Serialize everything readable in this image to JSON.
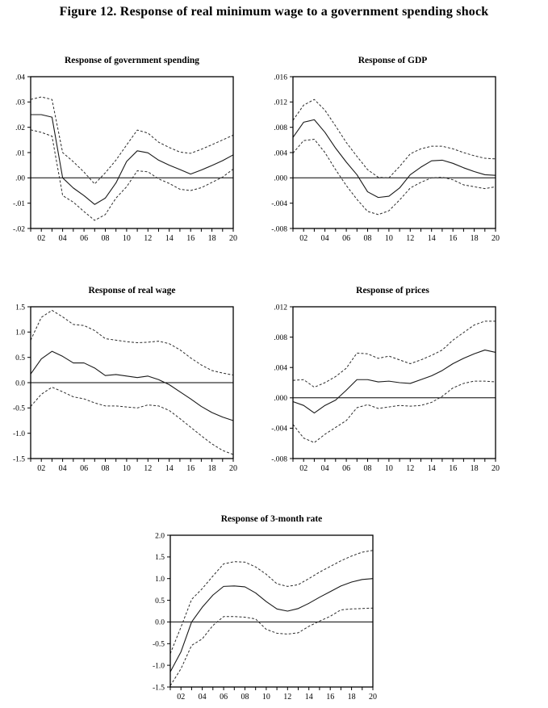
{
  "figure": {
    "title": "Figure 12. Response of real minimum wage to a government spending shock"
  },
  "style": {
    "background": "#ffffff",
    "line_color": "#000000",
    "band_style": "dashed",
    "mean_style": "solid"
  },
  "chart_data": [
    {
      "id": "government-spending",
      "type": "line",
      "title": "Response of government spending",
      "xlabel": "",
      "ylabel": "",
      "grid": false,
      "legend": "none",
      "zero_line": true,
      "x": [
        1,
        2,
        3,
        4,
        5,
        6,
        7,
        8,
        9,
        10,
        11,
        12,
        13,
        14,
        15,
        16,
        17,
        18,
        19,
        20
      ],
      "xtick_positions": [
        2,
        4,
        6,
        8,
        10,
        12,
        14,
        16,
        18,
        20
      ],
      "xtick_labels": [
        "02",
        "04",
        "06",
        "08",
        "10",
        "12",
        "14",
        "16",
        "18",
        "20"
      ],
      "ylim": [
        -0.02,
        0.04
      ],
      "ytick_values": [
        0.04,
        0.03,
        0.02,
        0.01,
        0.0,
        -0.01,
        -0.02
      ],
      "ytick_labels": [
        ".04",
        ".03",
        ".02",
        ".01",
        ".00",
        "-.01",
        "-.02"
      ],
      "series": [
        {
          "name": "mean",
          "style": "solid",
          "values": [
            0.025,
            0.025,
            0.024,
            0.0,
            -0.004,
            -0.007,
            -0.0105,
            -0.008,
            -0.002,
            0.0065,
            0.0107,
            0.0099,
            0.007,
            0.005,
            0.0033,
            0.0015,
            0.0031,
            0.0049,
            0.0068,
            0.0091
          ]
        },
        {
          "name": "upper-band",
          "style": "dashed",
          "values": [
            0.031,
            0.032,
            0.031,
            0.01,
            0.0064,
            0.0023,
            -0.0024,
            0.002,
            0.007,
            0.013,
            0.0189,
            0.0177,
            0.0141,
            0.012,
            0.0102,
            0.0097,
            0.0113,
            0.0131,
            0.015,
            0.0169
          ]
        },
        {
          "name": "lower-band",
          "style": "dashed",
          "values": [
            0.019,
            0.018,
            0.0165,
            -0.007,
            -0.0096,
            -0.0133,
            -0.0168,
            -0.0145,
            -0.008,
            -0.0035,
            0.0028,
            0.0024,
            -0.0004,
            -0.0022,
            -0.0045,
            -0.005,
            -0.0039,
            -0.0018,
            0.0003,
            0.0035
          ]
        }
      ]
    },
    {
      "id": "gdp",
      "type": "line",
      "title": "Response of GDP",
      "xlabel": "",
      "ylabel": "",
      "grid": false,
      "legend": "none",
      "zero_line": true,
      "x": [
        1,
        2,
        3,
        4,
        5,
        6,
        7,
        8,
        9,
        10,
        11,
        12,
        13,
        14,
        15,
        16,
        17,
        18,
        19,
        20
      ],
      "xtick_positions": [
        2,
        4,
        6,
        8,
        10,
        12,
        14,
        16,
        18,
        20
      ],
      "xtick_labels": [
        "02",
        "04",
        "06",
        "08",
        "10",
        "12",
        "14",
        "16",
        "18",
        "20"
      ],
      "ylim": [
        -0.008,
        0.016
      ],
      "ytick_values": [
        0.016,
        0.012,
        0.008,
        0.004,
        0.0,
        -0.004,
        -0.008
      ],
      "ytick_labels": [
        ".016",
        ".012",
        ".008",
        ".004",
        ".000",
        "-.004",
        "-.008"
      ],
      "series": [
        {
          "name": "mean",
          "style": "solid",
          "values": [
            0.0064,
            0.0088,
            0.0092,
            0.0072,
            0.0047,
            0.0025,
            0.0005,
            -0.0022,
            -0.0031,
            -0.0029,
            -0.0016,
            0.0005,
            0.0017,
            0.0027,
            0.0028,
            0.0023,
            0.0016,
            0.001,
            0.0005,
            0.0004
          ]
        },
        {
          "name": "upper-band",
          "style": "dashed",
          "values": [
            0.0091,
            0.0115,
            0.0124,
            0.0107,
            0.0082,
            0.0056,
            0.0034,
            0.0013,
            0.0001,
            0.0,
            0.0018,
            0.0038,
            0.0046,
            0.005,
            0.005,
            0.0046,
            0.004,
            0.0035,
            0.0031,
            0.003
          ]
        },
        {
          "name": "lower-band",
          "style": "dashed",
          "values": [
            0.0039,
            0.0059,
            0.0061,
            0.004,
            0.0013,
            -0.0012,
            -0.0034,
            -0.0053,
            -0.0058,
            -0.0052,
            -0.0035,
            -0.0016,
            -0.0007,
            0.0,
            0.0001,
            -0.0003,
            -0.0011,
            -0.0014,
            -0.0017,
            -0.0014
          ]
        }
      ]
    },
    {
      "id": "real-wage",
      "type": "line",
      "title": "Response of real wage",
      "xlabel": "",
      "ylabel": "",
      "grid": false,
      "legend": "none",
      "zero_line": true,
      "x": [
        1,
        2,
        3,
        4,
        5,
        6,
        7,
        8,
        9,
        10,
        11,
        12,
        13,
        14,
        15,
        16,
        17,
        18,
        19,
        20
      ],
      "xtick_positions": [
        2,
        4,
        6,
        8,
        10,
        12,
        14,
        16,
        18,
        20
      ],
      "xtick_labels": [
        "02",
        "04",
        "06",
        "08",
        "10",
        "12",
        "14",
        "16",
        "18",
        "20"
      ],
      "ylim": [
        -1.5,
        1.5
      ],
      "ytick_values": [
        1.5,
        1.0,
        0.5,
        0.0,
        -0.5,
        -1.0,
        -1.5
      ],
      "ytick_labels": [
        "1.5",
        "1.0",
        "0.5",
        "0.0",
        "-0.5",
        "-1.0",
        "-1.5"
      ],
      "series": [
        {
          "name": "mean",
          "style": "solid",
          "values": [
            0.17,
            0.47,
            0.62,
            0.52,
            0.39,
            0.39,
            0.29,
            0.14,
            0.16,
            0.13,
            0.1,
            0.13,
            0.06,
            -0.04,
            -0.18,
            -0.32,
            -0.47,
            -0.59,
            -0.68,
            -0.75
          ]
        },
        {
          "name": "upper-band",
          "style": "dashed",
          "values": [
            0.84,
            1.29,
            1.43,
            1.3,
            1.15,
            1.13,
            1.03,
            0.87,
            0.84,
            0.81,
            0.79,
            0.8,
            0.82,
            0.77,
            0.65,
            0.49,
            0.35,
            0.24,
            0.19,
            0.15
          ]
        },
        {
          "name": "lower-band",
          "style": "dashed",
          "values": [
            -0.47,
            -0.23,
            -0.09,
            -0.18,
            -0.28,
            -0.32,
            -0.4,
            -0.46,
            -0.46,
            -0.48,
            -0.5,
            -0.44,
            -0.46,
            -0.55,
            -0.71,
            -0.88,
            -1.05,
            -1.21,
            -1.34,
            -1.42
          ]
        }
      ]
    },
    {
      "id": "prices",
      "type": "line",
      "title": "Response of prices",
      "xlabel": "",
      "ylabel": "",
      "grid": false,
      "legend": "none",
      "zero_line": true,
      "x": [
        1,
        2,
        3,
        4,
        5,
        6,
        7,
        8,
        9,
        10,
        11,
        12,
        13,
        14,
        15,
        16,
        17,
        18,
        19,
        20
      ],
      "xtick_positions": [
        2,
        4,
        6,
        8,
        10,
        12,
        14,
        16,
        18,
        20
      ],
      "xtick_labels": [
        "02",
        "04",
        "06",
        "08",
        "10",
        "12",
        "14",
        "16",
        "18",
        "20"
      ],
      "ylim": [
        -0.008,
        0.012
      ],
      "ytick_values": [
        0.012,
        0.008,
        0.004,
        0.0,
        -0.004,
        -0.008
      ],
      "ytick_labels": [
        ".012",
        ".008",
        ".004",
        ".000",
        "-.004",
        "-.008"
      ],
      "series": [
        {
          "name": "mean",
          "style": "solid",
          "values": [
            -0.0005,
            -0.001,
            -0.002,
            -0.001,
            -0.0003,
            0.001,
            0.0024,
            0.0024,
            0.0021,
            0.0022,
            0.002,
            0.0019,
            0.0024,
            0.0029,
            0.0036,
            0.0045,
            0.0052,
            0.0058,
            0.0063,
            0.006
          ]
        },
        {
          "name": "upper-band",
          "style": "dashed",
          "values": [
            0.0023,
            0.0024,
            0.0014,
            0.002,
            0.0028,
            0.0039,
            0.0059,
            0.0058,
            0.0052,
            0.0055,
            0.005,
            0.0045,
            0.005,
            0.0056,
            0.0063,
            0.0076,
            0.0086,
            0.0096,
            0.0101,
            0.0101
          ]
        },
        {
          "name": "lower-band",
          "style": "dashed",
          "values": [
            -0.0035,
            -0.0053,
            -0.0059,
            -0.0048,
            -0.0039,
            -0.003,
            -0.0013,
            -0.0009,
            -0.0014,
            -0.0012,
            -0.001,
            -0.0011,
            -0.001,
            -0.0006,
            0.0002,
            0.0013,
            0.0019,
            0.0022,
            0.0022,
            0.0021
          ]
        }
      ]
    },
    {
      "id": "three-month-rate",
      "type": "line",
      "title": "Response of 3-month rate",
      "xlabel": "",
      "ylabel": "",
      "grid": false,
      "legend": "none",
      "zero_line": true,
      "x": [
        1,
        2,
        3,
        4,
        5,
        6,
        7,
        8,
        9,
        10,
        11,
        12,
        13,
        14,
        15,
        16,
        17,
        18,
        19,
        20
      ],
      "xtick_positions": [
        2,
        4,
        6,
        8,
        10,
        12,
        14,
        16,
        18,
        20
      ],
      "xtick_labels": [
        "02",
        "04",
        "06",
        "08",
        "10",
        "12",
        "14",
        "16",
        "18",
        "20"
      ],
      "ylim": [
        -1.5,
        2.0
      ],
      "ytick_values": [
        2.0,
        1.5,
        1.0,
        0.5,
        0.0,
        -0.5,
        -1.0,
        -1.5
      ],
      "ytick_labels": [
        "2.0",
        "1.5",
        "1.0",
        "0.5",
        "0.0",
        "-0.5",
        "-1.0",
        "-1.5"
      ],
      "series": [
        {
          "name": "mean",
          "style": "solid",
          "values": [
            -1.15,
            -0.69,
            0.0,
            0.34,
            0.62,
            0.82,
            0.83,
            0.81,
            0.67,
            0.47,
            0.3,
            0.25,
            0.31,
            0.43,
            0.57,
            0.7,
            0.83,
            0.92,
            0.98,
            1.0
          ]
        },
        {
          "name": "upper-band",
          "style": "dashed",
          "values": [
            -0.73,
            -0.12,
            0.52,
            0.77,
            1.06,
            1.34,
            1.39,
            1.38,
            1.27,
            1.1,
            0.88,
            0.82,
            0.86,
            1.0,
            1.15,
            1.28,
            1.41,
            1.52,
            1.61,
            1.65
          ]
        },
        {
          "name": "lower-band",
          "style": "dashed",
          "values": [
            -1.47,
            -1.08,
            -0.54,
            -0.39,
            -0.08,
            0.125,
            0.125,
            0.11,
            0.07,
            -0.17,
            -0.26,
            -0.28,
            -0.25,
            -0.1,
            0.02,
            0.13,
            0.28,
            0.3,
            0.31,
            0.32
          ]
        }
      ]
    }
  ]
}
